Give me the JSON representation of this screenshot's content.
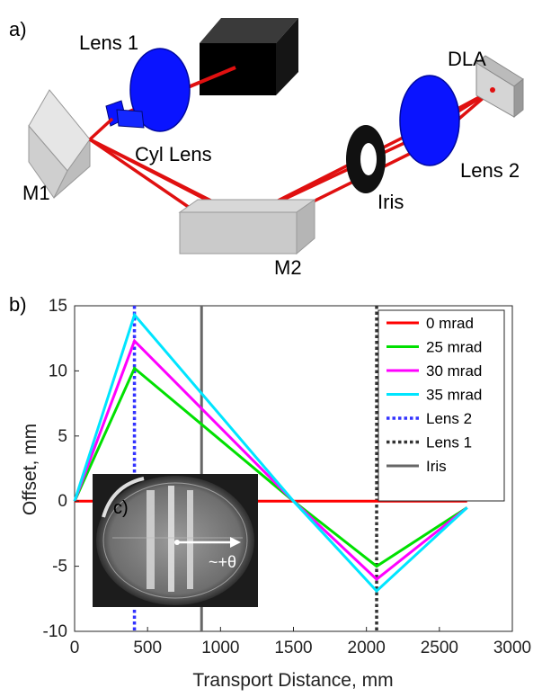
{
  "diagram": {
    "panel_label": "a)",
    "components": {
      "lens1": "Lens 1",
      "cyl_lens": "Cyl Lens",
      "m1": "M1",
      "m2": "M2",
      "iris": "Iris",
      "lens2": "Lens 2",
      "dla": "DLA"
    }
  },
  "chart_data": {
    "type": "line",
    "panel_label": "b)",
    "xlabel": "Transport Distance, mm",
    "ylabel": "Offset, mm",
    "xlim": [
      0,
      3000
    ],
    "ylim": [
      -10,
      15
    ],
    "xticks": [
      0,
      500,
      1000,
      1500,
      2000,
      2500,
      3000
    ],
    "yticks": [
      -10,
      -5,
      0,
      5,
      10,
      15
    ],
    "grid": false,
    "legend_position": "top-right",
    "series": [
      {
        "name": "0 mrad",
        "color": "#ff0000",
        "x": [
          0,
          2690
        ],
        "y": [
          0,
          0
        ]
      },
      {
        "name": "25 mrad",
        "color": "#00e000",
        "x": [
          0,
          410,
          1500,
          2070,
          2690
        ],
        "y": [
          0,
          10.2,
          0,
          -5.0,
          -0.5
        ]
      },
      {
        "name": "30 mrad",
        "color": "#ff00ff",
        "x": [
          0,
          410,
          1500,
          2070,
          2690
        ],
        "y": [
          0,
          12.3,
          0,
          -6.0,
          -0.5
        ]
      },
      {
        "name": "35 mrad",
        "color": "#00e5ff",
        "x": [
          0,
          410,
          1500,
          2070,
          2690
        ],
        "y": [
          0,
          14.3,
          0,
          -6.9,
          -0.5
        ]
      }
    ],
    "reference_lines": [
      {
        "name": "Lens 2",
        "x": 410,
        "color": "#3333ff",
        "style": "dotted"
      },
      {
        "name": "Lens 1",
        "x": 2070,
        "color": "#333333",
        "style": "dotted"
      },
      {
        "name": "Iris",
        "x": 870,
        "color": "#666666",
        "style": "solid"
      }
    ],
    "inset": {
      "label": "c)",
      "arrow_label": "~+θ"
    }
  }
}
